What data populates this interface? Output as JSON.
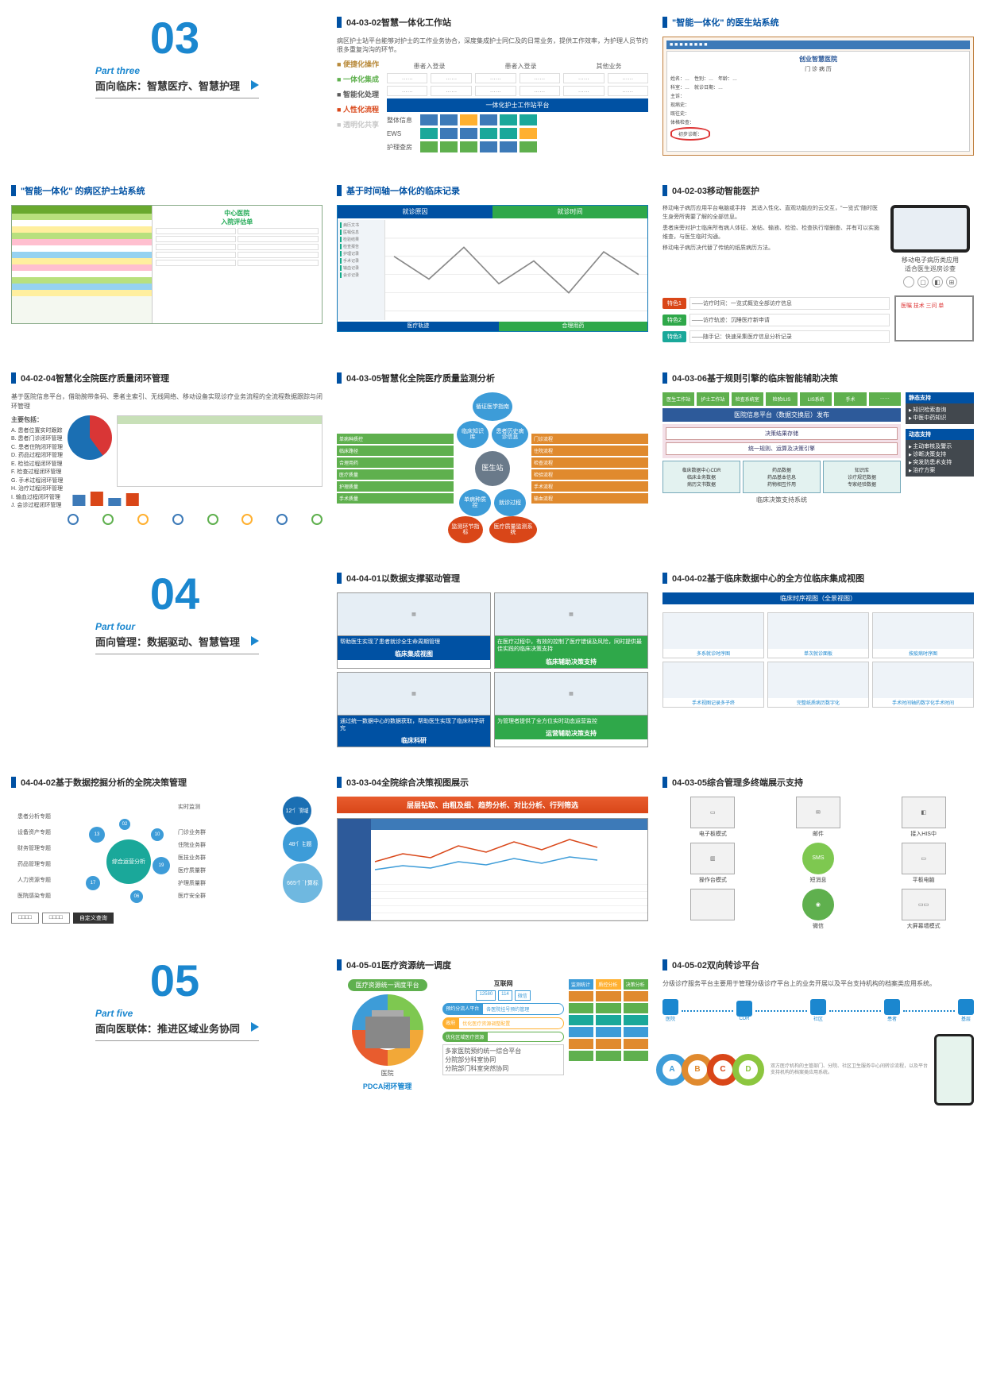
{
  "parts": {
    "p3": {
      "num": "03",
      "small": "Part three",
      "main": "面向临床：智慧医疗、智慧护理"
    },
    "p4": {
      "num": "04",
      "small": "Part four",
      "main": "面向管理：数据驱动、智慧管理"
    },
    "p5": {
      "num": "05",
      "small": "Part five",
      "main": "面向医联体：推进区域业务协同"
    }
  },
  "r1": {
    "c2": {
      "title": "04-03-02智慧一体化工作站",
      "intro": "病区护士站平台能够对护士的工作业务协合，深度集成护士同仁及的日常业务，提供工作效率，为护理人员节约很多重复沟沟的环节。",
      "heads": [
        "患者入登录",
        "患者入登录",
        "其他业务"
      ],
      "cell": "……",
      "features": [
        {
          "t": "便捷化操作",
          "c": "#b88a3a"
        },
        {
          "t": "一体化集成",
          "c": "#5fb04e"
        },
        {
          "t": "智能化处理",
          "c": "#5a5a5a"
        },
        {
          "t": "人性化流程",
          "c": "#d94618"
        },
        {
          "t": "透明化共享",
          "c": "#c8c8c8"
        }
      ],
      "platform": "一体化护士工作站平台",
      "rowsLabel": [
        "整体信息",
        "EWS",
        "护理查房"
      ],
      "chipColors": [
        "#3d7ab8",
        "#3d7ab8",
        "#ffb030",
        "#3d7ab8",
        "#1aa89a",
        "#1aa89a",
        "#1aa89a",
        "#3d7ab8",
        "#3d7ab8",
        "#1aa89a",
        "#1aa89a",
        "#ffb030",
        "#5fb04e",
        "#5fb04e",
        "#5fb04e",
        "#3d7ab8",
        "#3d7ab8",
        "#5fb04e"
      ]
    },
    "c3": {
      "title": "\"智能一体化\" 的医生站系统",
      "appTitle": "创业智慧医院",
      "sub": "门 诊 病 历",
      "fields": [
        "姓名：…　性别：…　年龄：…",
        "科室：…　就诊日期：…",
        "主诉：",
        "现病史：",
        "既往史：",
        "体格检查："
      ],
      "circled": "初步诊断："
    }
  },
  "r2": {
    "c1": {
      "title": "\"智能一体化\" 的病区护士站系统",
      "formTitle": "中心医院\n入院评估单",
      "rowColors": [
        "#b8e07e",
        "#ffffff",
        "#ffef9e",
        "#b8e07e",
        "#ffbfcf",
        "#ffffff",
        "#96d2f0",
        "#ffef9e",
        "#ffbfcf",
        "#ffffff",
        "#b8e07e",
        "#96d2f0",
        "#ffef9e"
      ]
    },
    "c2": {
      "title": "基于时间轴一体化的临床记录",
      "heads": [
        {
          "t": "就诊原因",
          "c": "#0051a3"
        },
        {
          "t": "就诊时间",
          "c": "#2fa84a"
        }
      ],
      "sideItems": [
        "病历文书",
        "医嘱信息",
        "检验结果",
        "检查报告",
        "护理记录",
        "手术记录",
        "输血记录",
        "会诊记录"
      ],
      "foot": [
        {
          "t": "医疗轨迹",
          "w": "52%",
          "c": "#0051a3"
        },
        {
          "t": "合理用药",
          "w": "48%",
          "c": "#2fa84a"
        }
      ]
    },
    "c3": {
      "title": "04-02-03移动智能医护",
      "para1": "移动电子病历应用平台电脑或手持　其适入性化、直观功能应的云交互，\"一览式\"随时医生身旁所需要了解的全部信息。",
      "para2": "患者床旁对护士临床所有病人体征、发帖、输液、检验、检查执行增删查、并有可以实施维查，与医生临时沟通。",
      "para3": "移动电子病历决代替了传统的纸质病历方法。",
      "caption": "移动电子病历类应用\n适合医生巡房诊查",
      "os": [
        "",
        "▢",
        "◧",
        "⊞"
      ],
      "features": [
        {
          "tag": "特色1",
          "c": "#d94618",
          "desc": "——访疗时间：一览式概览全部访疗信息"
        },
        {
          "tag": "特色2",
          "c": "#2fa84a",
          "desc": "——访疗轨迹：沉睡医疗新申请"
        },
        {
          "tag": "特色3",
          "c": "#1aa89a",
          "desc": "——随手记：快速采集医疗信息分析记录"
        }
      ],
      "board": "医嘱 技术  三问 单"
    }
  },
  "r3": {
    "c1": {
      "title": "04-02-04智慧化全院医疗质量闭环管理",
      "intro": "基于医院信息平台，借助腕带条码、患者主索引、无线网络、移动设备实现诊疗业务流程的全流程数据跟踪与闭环管理",
      "listTitle": "主要包括：",
      "list": [
        "A. 患者位置实时跟踪",
        "B. 患者门诊闭环管理",
        "C. 患者住院闭环管理",
        "D. 药品过程闭环管理",
        "E. 检验过程闭环管理",
        "F. 检查过程闭环管理",
        "G. 手术过程闭环管理",
        "H. 治疗过程闭环管理",
        "I. 输血过程闭环管理",
        "J. 会诊过程闭环管理"
      ],
      "flowColors": [
        "#3d7ab8",
        "#5fb04e",
        "#ffb030",
        "#3d7ab8",
        "#5fb04e",
        "#ffb030",
        "#3d7ab8",
        "#5fb04e"
      ]
    },
    "c2": {
      "title": "04-03-05智慧化全院医疗质量监测分析",
      "center": "医生站",
      "nodes": {
        "top": {
          "t": "循证医学指南",
          "c": "#3d9cd8"
        },
        "left1": {
          "t": "临床知识库",
          "c": "#3d9cd8"
        },
        "left2": {
          "t": "单病种质控",
          "c": "#3d9cd8"
        },
        "right1": {
          "t": "患者历史病诊信息",
          "c": "#3d9cd8"
        },
        "right2": {
          "t": "就诊过程",
          "c": "#3d9cd8"
        },
        "bl": {
          "t": "监测环节指标",
          "c": "#d94618"
        },
        "br": {
          "t": "医疗质量监测系统",
          "c": "#d94618"
        }
      },
      "leftBox": {
        "c": "#5fb04e",
        "items": [
          "单病种质控",
          "临床路径",
          "合理用药",
          "医疗质量",
          "护理质量",
          "手术质量"
        ]
      },
      "rightBox": {
        "c": "#e08a2e",
        "items": [
          "门诊流程",
          "住院流程",
          "检查流程",
          "检验流程",
          "手术流程",
          "输血流程"
        ]
      }
    },
    "c3": {
      "title": "04-03-06基于规则引擎的临床智能辅助决策",
      "top": [
        "医生工作站",
        "护士工作站",
        "检查系统室",
        "检验/LIS",
        "LIS系统",
        "手术",
        "……"
      ],
      "banner": "医院信息平台（数据交换层）发布",
      "mid": [
        "决策结果存储",
        "统一规则、运算及决策引擎"
      ],
      "bot": [
        "临床数据中心CDR\n临床业务数据\n病历文书数据",
        "药品数据\n药品基本信息\n药物相互作用",
        "知识库\n诊疗规范数据\n专家经验数据"
      ],
      "caption": "临床决策支持系统",
      "sideA": {
        "hdr": "静态支持",
        "items": [
          "知识检索查询",
          "中医中药知识"
        ]
      },
      "sideB": {
        "hdr": "动态支持",
        "items": [
          "主动审核及警示",
          "诊断决策支持",
          "突发防患术支持",
          "治疗方案"
        ]
      }
    }
  },
  "r4": {
    "c2": {
      "title": "04-04-01以数据支撑驱动管理",
      "cells": [
        {
          "cap": "临床集成视图",
          "capC": "#0051a3",
          "txt": "帮助医生实现了患者就诊全生命周期管理",
          "txtC": "#0051a3"
        },
        {
          "cap": "临床辅助决策支持",
          "capC": "#2fa84a",
          "txt": "在医疗过程中，有效的控制了医疗错误及风险，同时提供最佳实践的临床决策支持",
          "txtC": "#2fa84a"
        },
        {
          "cap": "临床科研",
          "capC": "#0051a3",
          "txt": "通过统一数据中心的数据获取，帮助医生实现了临床科学研究",
          "txtC": "#0051a3"
        },
        {
          "cap": "运营辅助决策支持",
          "capC": "#2fa84a",
          "txt": "为管理者提供了全方位实时动态运营监控",
          "txtC": "#2fa84a"
        }
      ]
    },
    "c3": {
      "title": "04-04-02基于临床数据中心的全方位临床集成视图",
      "head": "临床时序视图（全景视图）",
      "items": [
        "多系就诊时序图",
        "单次就诊面板",
        "按疫病时序图",
        "手术视图记录多子终",
        "完整纸质病历数字化",
        "手术时间轴的数字化手术时间"
      ]
    }
  },
  "r5": {
    "c1": {
      "title": "04-04-02基于数据挖掘分析的全院决策管理",
      "center": "综合运营分析",
      "labels": [
        "患者分析专题",
        "设备资产专题",
        "财务管理专题",
        "药品管理专题",
        "人力资源专题",
        "医院感染专题",
        "实时监测",
        "门诊业务群",
        "住院业务群",
        "医技业务群",
        "医疗质量群",
        "护理质量群",
        "医疗安全群"
      ],
      "gears": [
        {
          "t": "12个领域",
          "c": "#1b6fb3",
          "s": 36
        },
        {
          "t": "48个主题",
          "c": "#3d9cd8",
          "s": 44
        },
        {
          "t": "665个计算标",
          "c": "#6fb8e0",
          "s": 50
        }
      ]
    },
    "c2": {
      "title": "03-03-04全院综合决策视图展示",
      "banner": "层层钻取、由粗及细、趋势分析、对比分析、行列筛选"
    },
    "c3": {
      "title": "04-03-05综合管理多终端展示支持",
      "terms": [
        "电子板模式",
        "邮件",
        "接入HIS中",
        "操作台模式",
        "短消息",
        "平板电脑",
        "",
        "微信",
        "大屏幕墙模式"
      ]
    }
  },
  "r6": {
    "c2": {
      "title": "04-05-01医疗资源统一调度",
      "platform": "医疗资源统一调度平台",
      "hospital": "医院",
      "footer": "PDCA闭环管理",
      "net": {
        "t": "互联网",
        "items": [
          "12580",
          "114",
          "微信"
        ]
      },
      "cap1": {
        "t": "预约分流人平台",
        "items": [
          "各医院挂号预约管理"
        ]
      },
      "cap2": {
        "t": "政府",
        "items": [
          "优化医疗资源调整配置"
        ]
      },
      "cap3": {
        "t": "优化区域医疗资源",
        "items": [
          ""
        ]
      },
      "foot3": "多家医院预约统一综合平台\n分院部分科室协同\n分院部门科室突然协同",
      "pillars": [
        {
          "t": "监测统计",
          "c": "#3d9cd8"
        },
        {
          "t": "质控分析",
          "c": "#ffb030"
        },
        {
          "t": "决策分析",
          "c": "#5fb04e"
        }
      ],
      "pillItems": [
        "#e08a2e",
        "#5fb04e",
        "#1aa89a",
        "#3d9cd8",
        "#e08a2e",
        "#5fb04e"
      ]
    },
    "c3": {
      "title": "04-05-02双向转诊平台",
      "intro": "分级诊疗服务平台主要用于管理分级诊疗平台上的业务开展以及平台支持机构的档案类应用系统。",
      "nodes": [
        "医院",
        "CDR",
        "社区",
        "患者",
        "基层"
      ],
      "ringColors": [
        "#3d9cd8",
        "#e08a2e",
        "#d94618",
        "#8cc63f"
      ],
      "ringLabels": [
        "A",
        "B",
        "C",
        "D"
      ]
    }
  }
}
